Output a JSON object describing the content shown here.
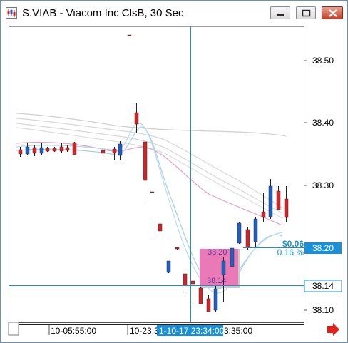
{
  "window": {
    "title": "S.VIAB - Viacom Inc ClsB, 30 Sec",
    "icon": "candlestick-chart-icon",
    "controls": [
      "minimize-icon",
      "maximize-icon",
      "close-icon"
    ]
  },
  "price_axis": {
    "ticks": [
      "38.50",
      "38.40",
      "38.30",
      "38.20",
      "38.14",
      "38.10"
    ]
  },
  "time_axis": {
    "labels": [
      "10-05:55:00",
      "10-23:3",
      "3:35:00"
    ],
    "cursor_label": "1-10-17 23:34:00"
  },
  "crosshair": {
    "price_label": "38.14"
  },
  "last_price": {
    "value_label": "38.20"
  },
  "change": {
    "amount": "$0.06",
    "percent": "0.16 %"
  },
  "selection": {
    "high_label": "38.20",
    "low_label": "38.14",
    "color": "#f06bb5"
  },
  "scroll": {
    "arrow": "right-arrow-icon"
  },
  "colors": {
    "up": "#1f5fbf",
    "down": "#d0242b",
    "crosshair": "#1a8fd8",
    "axis_highlight": "#1a8fd8"
  }
}
